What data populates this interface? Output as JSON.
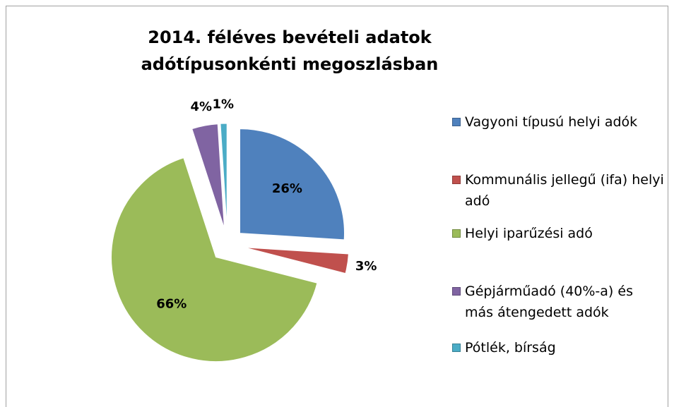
{
  "chart_data": {
    "type": "pie",
    "title": "2014. féléves bevételi adatok adótípusonkénti megoszlásban",
    "categories": [
      "Vagyoni típusú helyi adók",
      "Kommunális jellegű (ifa) helyi adó",
      "Helyi iparűzési adó",
      "Gépjárműadó (40%-a) és más átengedett adók",
      "Pótlék, bírság"
    ],
    "values": [
      26,
      3,
      66,
      4,
      1
    ],
    "value_labels": [
      "26%",
      "3%",
      "66%",
      "4%",
      "1%"
    ],
    "colors": [
      "#4f81bd",
      "#c0504d",
      "#9bbb59",
      "#8064a2",
      "#4bacc6"
    ],
    "legend": "right"
  }
}
